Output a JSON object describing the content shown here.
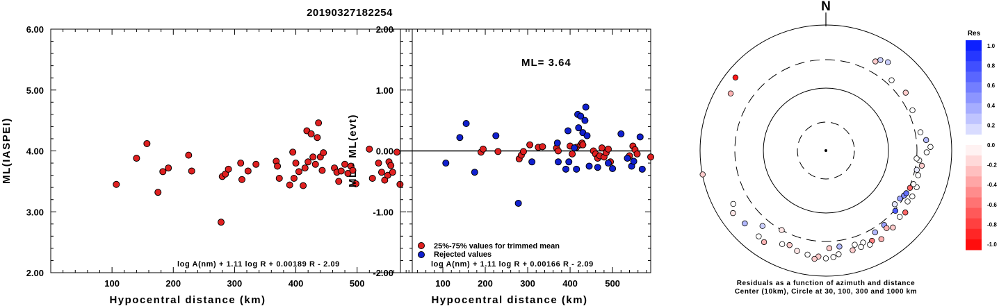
{
  "event_id": "20190327182254",
  "chart_data": [
    {
      "type": "scatter",
      "xlabel": "Hypocentral distance (km)",
      "ylabel": "ML(IASPEI)",
      "xlim": [
        0,
        590
      ],
      "ylim": [
        2.0,
        6.0
      ],
      "xticks": [
        100,
        200,
        300,
        400,
        500
      ],
      "yticks": [
        "2.00",
        "3.00",
        "4.00",
        "5.00",
        "6.00"
      ],
      "formula": "log A(nm) + 1.11 log R + 0.00189 R - 2.09",
      "series": [
        {
          "color": "#e02020",
          "points": [
            [
              107,
              3.45
            ],
            [
              140,
              3.88
            ],
            [
              157,
              4.12
            ],
            [
              175,
              3.32
            ],
            [
              183,
              3.66
            ],
            [
              192,
              3.72
            ],
            [
              225,
              3.93
            ],
            [
              230,
              3.67
            ],
            [
              278,
              2.83
            ],
            [
              280,
              3.58
            ],
            [
              285,
              3.62
            ],
            [
              290,
              3.7
            ],
            [
              310,
              3.8
            ],
            [
              312,
              3.53
            ],
            [
              322,
              3.67
            ],
            [
              335,
              3.78
            ],
            [
              368,
              3.83
            ],
            [
              370,
              3.75
            ],
            [
              373,
              3.55
            ],
            [
              390,
              3.44
            ],
            [
              395,
              3.98
            ],
            [
              397,
              3.55
            ],
            [
              400,
              3.8
            ],
            [
              405,
              3.66
            ],
            [
              412,
              3.43
            ],
            [
              415,
              3.72
            ],
            [
              418,
              4.33
            ],
            [
              420,
              3.82
            ],
            [
              425,
              4.28
            ],
            [
              428,
              3.9
            ],
            [
              432,
              3.78
            ],
            [
              435,
              4.22
            ],
            [
              437,
              4.46
            ],
            [
              440,
              3.9
            ],
            [
              443,
              3.68
            ],
            [
              445,
              3.97
            ],
            [
              463,
              3.72
            ],
            [
              467,
              3.65
            ],
            [
              470,
              3.5
            ],
            [
              474,
              3.67
            ],
            [
              480,
              3.78
            ],
            [
              485,
              3.63
            ],
            [
              490,
              3.75
            ],
            [
              493,
              3.68
            ],
            [
              498,
              3.46
            ],
            [
              520,
              4.03
            ],
            [
              525,
              3.55
            ],
            [
              535,
              3.8
            ],
            [
              540,
              3.65
            ],
            [
              545,
              3.52
            ],
            [
              550,
              3.6
            ],
            [
              552,
              3.82
            ],
            [
              555,
              3.76
            ],
            [
              558,
              3.65
            ],
            [
              565,
              3.98
            ],
            [
              570,
              3.45
            ],
            [
              592,
              3.66
            ]
          ]
        }
      ]
    },
    {
      "type": "scatter",
      "xlabel": "Hypocentral distance (km)",
      "ylabel": "ML - ML(evt)",
      "xlim": [
        0,
        590
      ],
      "ylim": [
        -2.0,
        2.0
      ],
      "xticks": [
        100,
        200,
        300,
        400,
        500
      ],
      "yticks": [
        "-2.00",
        "-1.00",
        "0.00",
        "1.00",
        "2.00"
      ],
      "reference_line": 0.0,
      "annotation": "ML= 3.64",
      "formula": "log A(nm) + 1.11 log R + 0.00166 R - 2.09",
      "series": [
        {
          "name": "25%-75% values for trimmed mean",
          "color": "#e02020",
          "points": [
            [
              190,
              -0.02
            ],
            [
              195,
              0.03
            ],
            [
              230,
              -0.01
            ],
            [
              280,
              -0.13
            ],
            [
              285,
              -0.07
            ],
            [
              290,
              -0.01
            ],
            [
              305,
              0.1
            ],
            [
              325,
              0.06
            ],
            [
              335,
              0.07
            ],
            [
              368,
              0.05
            ],
            [
              372,
              0.0
            ],
            [
              400,
              0.08
            ],
            [
              405,
              -0.05
            ],
            [
              415,
              0.06
            ],
            [
              425,
              0.1
            ],
            [
              428,
              0.13
            ],
            [
              430,
              0.1
            ],
            [
              455,
              0.0
            ],
            [
              460,
              -0.05
            ],
            [
              465,
              -0.12
            ],
            [
              470,
              -0.08
            ],
            [
              475,
              0.05
            ],
            [
              480,
              -0.1
            ],
            [
              485,
              -0.03
            ],
            [
              490,
              0.03
            ],
            [
              495,
              -0.18
            ],
            [
              540,
              -0.08
            ],
            [
              548,
              0.08
            ],
            [
              553,
              0.02
            ],
            [
              558,
              -0.05
            ],
            [
              590,
              -0.1
            ]
          ]
        },
        {
          "name": "Rejected values",
          "color": "#1020d0",
          "points": [
            [
              107,
              -0.2
            ],
            [
              140,
              0.22
            ],
            [
              155,
              0.45
            ],
            [
              175,
              -0.35
            ],
            [
              225,
              0.25
            ],
            [
              278,
              -0.86
            ],
            [
              310,
              -0.18
            ],
            [
              370,
              0.13
            ],
            [
              372,
              -0.18
            ],
            [
              390,
              -0.3
            ],
            [
              395,
              0.33
            ],
            [
              397,
              -0.18
            ],
            [
              410,
              0.05
            ],
            [
              415,
              -0.3
            ],
            [
              418,
              0.6
            ],
            [
              420,
              0.38
            ],
            [
              425,
              0.57
            ],
            [
              430,
              0.3
            ],
            [
              435,
              0.5
            ],
            [
              437,
              0.72
            ],
            [
              440,
              0.25
            ],
            [
              445,
              -0.25
            ],
            [
              465,
              -0.27
            ],
            [
              490,
              -0.2
            ],
            [
              500,
              -0.29
            ],
            [
              520,
              0.28
            ],
            [
              535,
              -0.12
            ],
            [
              545,
              -0.25
            ],
            [
              550,
              -0.17
            ],
            [
              565,
              0.23
            ],
            [
              570,
              -0.3
            ]
          ]
        }
      ]
    },
    {
      "type": "scatter",
      "subtype": "polar",
      "north_label": "N",
      "rings_km": [
        30,
        100,
        300,
        1000
      ],
      "caption": [
        "Residuals as a function of azimuth and distance",
        "Center (10km), Circle at 30, 100, 300 and 1000 km"
      ],
      "colorbar": {
        "title": "Res",
        "labels": [
          "1.0",
          "0.8",
          "0.6",
          "0.4",
          "0.2",
          "0.0",
          "-0.2",
          "-0.4",
          "-0.6",
          "-0.8",
          "-1.0"
        ]
      },
      "points_azimuth_distance_residual": [
        [
          309,
          720,
          -0.9
        ],
        [
          301,
          600,
          -0.3
        ],
        [
          259,
          990,
          -0.2
        ],
        [
          236,
          620,
          -0.1
        ],
        [
          220,
          390,
          0.2
        ],
        [
          209,
          300,
          -0.1
        ],
        [
          178,
          380,
          -0.2
        ],
        [
          172,
          370,
          0.3
        ],
        [
          163,
          390,
          0.0
        ],
        [
          149,
          350,
          0.3
        ],
        [
          142,
          340,
          0.4
        ],
        [
          128,
          260,
          0.1
        ],
        [
          131,
          310,
          0.7
        ],
        [
          123,
          270,
          0.4
        ],
        [
          120,
          290,
          0.5
        ],
        [
          118,
          300,
          0.6
        ],
        [
          114,
          310,
          -0.6
        ],
        [
          105,
          350,
          0.0
        ],
        [
          102,
          320,
          0.1
        ],
        [
          99,
          370,
          -0.2
        ],
        [
          91,
          420,
          0.0
        ],
        [
          88,
          480,
          0.0
        ],
        [
          84,
          420,
          0.3
        ],
        [
          79,
          360,
          0.0
        ],
        [
          65,
          350,
          0.0
        ],
        [
          54,
          390,
          -0.2
        ],
        [
          43,
          360,
          0.0
        ],
        [
          31,
          500,
          0.2
        ],
        [
          29,
          440,
          -0.2
        ],
        [
          35,
          540,
          0.2
        ],
        [
          148,
          480,
          -0.3
        ],
        [
          153,
          430,
          -0.5
        ],
        [
          155,
          470,
          0.0
        ],
        [
          158,
          400,
          0.0
        ],
        [
          160,
          450,
          0.0
        ],
        [
          165,
          460,
          -0.2
        ],
        [
          173,
          480,
          0.0
        ],
        [
          176,
          520,
          0.0
        ],
        [
          180,
          540,
          0.0
        ],
        [
          184,
          510,
          -0.2
        ],
        [
          186,
          560,
          -0.2
        ],
        [
          190,
          500,
          0.0
        ],
        [
          196,
          480,
          -0.1
        ],
        [
          201,
          430,
          -0.2
        ],
        [
          205,
          460,
          0.0
        ],
        [
          214,
          590,
          -0.3
        ],
        [
          218,
          560,
          0.0
        ],
        [
          228,
          560,
          0.3
        ],
        [
          240,
          520,
          0.0
        ],
        [
          128,
          420,
          -0.6
        ],
        [
          122,
          360,
          0.0
        ],
        [
          132,
          400,
          0.0
        ],
        [
          139,
          440,
          -0.2
        ],
        [
          142,
          390,
          -0.3
        ],
        [
          118,
          380,
          0.0
        ],
        [
          112,
          380,
          0.0
        ],
        [
          111,
          330,
          0.0
        ],
        [
          96,
          330,
          0.0
        ],
        [
          95,
          300,
          0.0
        ]
      ]
    }
  ]
}
